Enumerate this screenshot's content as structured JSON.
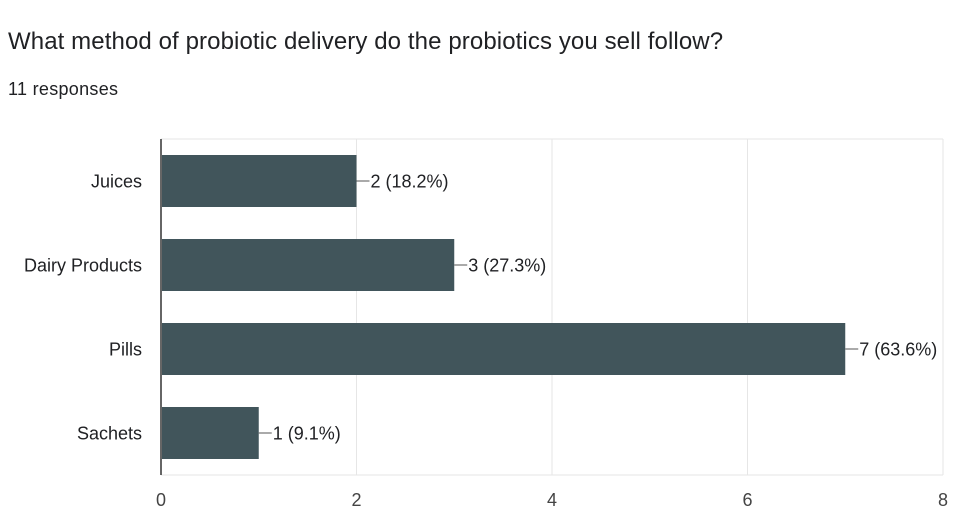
{
  "question": "What method of probiotic delivery do the probiotics you sell follow?",
  "responses_label": "11 responses",
  "chart_data": {
    "type": "bar",
    "orientation": "horizontal",
    "categories": [
      "Juices",
      "Dairy Products",
      "Pills",
      "Sachets"
    ],
    "values": [
      2,
      3,
      7,
      1
    ],
    "data_labels": [
      "2 (18.2%)",
      "3 (27.3%)",
      "7 (63.6%)",
      "1 (9.1%)"
    ],
    "xlim": [
      0,
      8
    ],
    "x_ticks": [
      0,
      2,
      4,
      6,
      8
    ],
    "grid": true,
    "bar_color": "#41555b",
    "grid_color": "#e6e6e6",
    "axis_color": "#333333",
    "text_color": "#202124"
  }
}
